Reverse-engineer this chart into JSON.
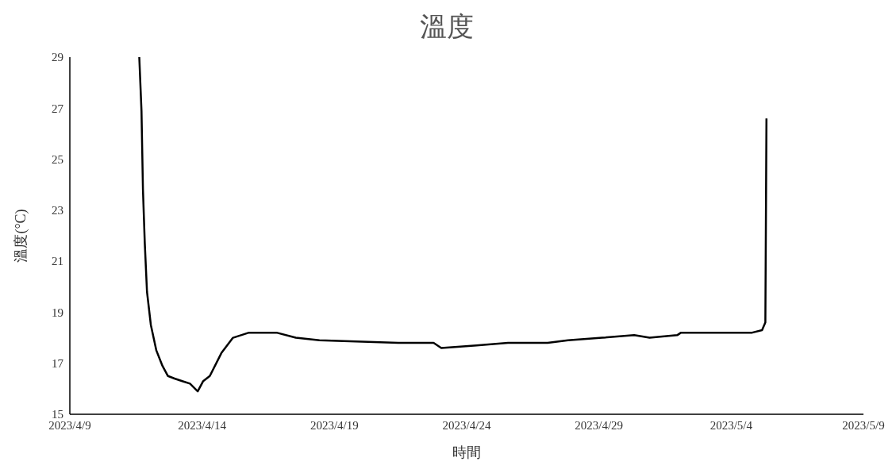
{
  "chart_data": {
    "type": "line",
    "title": "溫度",
    "xlabel": "時間",
    "ylabel": "溫度(°C)",
    "x": [
      "2023-04-11T15:00",
      "2023-04-11T17:00",
      "2023-04-11T18:20",
      "2023-04-11T20:00",
      "2023-04-11T22:00",
      "2023-04-12T01:30",
      "2023-04-12T06:30",
      "2023-04-12T12:00",
      "2023-04-12T17:00",
      "2023-04-12T23:00",
      "2023-04-13T06:00",
      "2023-04-13T13:00",
      "2023-04-13T20:00",
      "2023-04-14T01:00",
      "2023-04-14T07:00",
      "2023-04-14T17:30",
      "2023-04-15T04:00",
      "2023-04-15T18:30",
      "2023-04-16T19:30",
      "2023-04-17T13:00",
      "2023-04-18T10:30",
      "2023-04-21T10:00",
      "2023-04-22T18:00",
      "2023-04-23T01:00",
      "2023-04-24T09:00",
      "2023-04-25T13:30",
      "2023-04-27T01:30",
      "2023-04-27T20:00",
      "2023-04-29T03:00",
      "2023-04-30T08:00",
      "2023-04-30T22:00",
      "2023-05-01T23:00",
      "2023-05-02T02:30",
      "2023-05-04T19:00",
      "2023-05-05T04:00",
      "2023-05-05T07:00",
      "2023-05-05T08:00"
    ],
    "series": [
      {
        "color": "#000000",
        "values": [
          29,
          26.9,
          23.8,
          21.7,
          19.8,
          18.5,
          17.5,
          16.9,
          16.5,
          16.4,
          16.3,
          16.2,
          15.9,
          16.3,
          16.5,
          17.4,
          18.0,
          18.2,
          18.2,
          18.0,
          17.9,
          17.8,
          17.8,
          17.6,
          17.7,
          17.8,
          17.8,
          17.9,
          18.0,
          18.1,
          18.0,
          18.1,
          18.2,
          18.2,
          18.3,
          18.6,
          26.6
        ]
      }
    ],
    "xlim": [
      "2023-04-09",
      "2023-05-09"
    ],
    "xticks": [
      {
        "value": "2023-04-09",
        "label": "2023/4/9"
      },
      {
        "value": "2023-04-14",
        "label": "2023/4/14"
      },
      {
        "value": "2023-04-19",
        "label": "2023/4/19"
      },
      {
        "value": "2023-04-24",
        "label": "2023/4/24"
      },
      {
        "value": "2023-04-29",
        "label": "2023/4/29"
      },
      {
        "value": "2023-05-04",
        "label": "2023/5/4"
      },
      {
        "value": "2023-05-09",
        "label": "2023/5/9"
      }
    ],
    "ylim": [
      15,
      29
    ],
    "yticks": [
      15,
      17,
      19,
      21,
      23,
      25,
      27,
      29
    ],
    "grid": false,
    "legend": false,
    "marker": "none",
    "line_style": "solid"
  }
}
